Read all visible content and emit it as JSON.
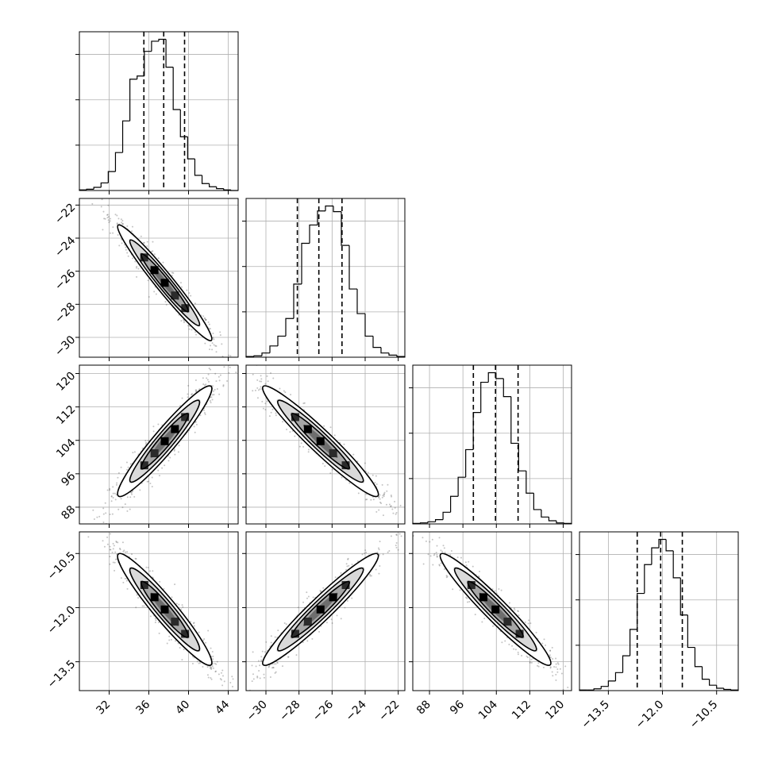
{
  "chart_data": {
    "type": "corner",
    "grid": true,
    "parameters": [
      {
        "range": [
          29,
          45
        ],
        "ticks": [
          32,
          36,
          40,
          44
        ],
        "tick_labels": [
          "32",
          "36",
          "40",
          "44"
        ],
        "tick_rotation": -45,
        "quantiles": [
          35.5,
          37.5,
          39.6
        ],
        "histogram": [
          1,
          2,
          5,
          12,
          30,
          60,
          110,
          176,
          181,
          220,
          236,
          239,
          195,
          128,
          85,
          50,
          24,
          11,
          6,
          3,
          1,
          0
        ]
      },
      {
        "range": [
          -31.2,
          -21.6
        ],
        "ticks": [
          -30,
          -28,
          -26,
          -24,
          -22
        ],
        "tick_labels": [
          "−30",
          "−28",
          "−26",
          "−24",
          "−22"
        ],
        "tick_rotation": -45,
        "quantiles": [
          -28.1,
          -26.8,
          -25.4
        ],
        "histogram": [
          1,
          2,
          6,
          16,
          30,
          55,
          104,
          162,
          188,
          208,
          215,
          207,
          159,
          97,
          62,
          30,
          14,
          6,
          3,
          1
        ]
      },
      {
        "range": [
          84,
          122
        ],
        "ticks": [
          88,
          96,
          104,
          112,
          120
        ],
        "tick_labels": [
          "88",
          "96",
          "104",
          "112",
          "120"
        ],
        "tick_rotation": -45,
        "quantiles": [
          98.5,
          103.8,
          109.2
        ],
        "histogram": [
          1,
          2,
          4,
          8,
          22,
          52,
          88,
          140,
          210,
          267,
          285,
          274,
          240,
          152,
          100,
          58,
          27,
          13,
          6,
          2,
          1
        ]
      },
      {
        "range": [
          -14.3,
          -9.9
        ],
        "ticks": [
          -13.5,
          -12.0,
          -10.5
        ],
        "tick_labels": [
          "−13.5",
          "−12.0",
          "−10.5"
        ],
        "tick_rotation": -45,
        "quantiles": [
          -12.7,
          -12.05,
          -11.45
        ],
        "histogram": [
          1,
          1,
          3,
          7,
          16,
          30,
          58,
          102,
          162,
          210,
          238,
          252,
          233,
          188,
          126,
          72,
          40,
          19,
          9,
          4,
          2,
          1
        ]
      }
    ],
    "pairs": [
      {
        "row": 1,
        "col": 0,
        "mean": [
          37.6,
          -26.7
        ],
        "sd": [
          1.9,
          1.4
        ],
        "corr": -0.97
      },
      {
        "row": 2,
        "col": 0,
        "mean": [
          37.6,
          103.8
        ],
        "sd": [
          1.9,
          5.3
        ],
        "corr": 0.95
      },
      {
        "row": 2,
        "col": 1,
        "mean": [
          -26.7,
          103.8
        ],
        "sd": [
          1.4,
          5.3
        ],
        "corr": -0.96
      },
      {
        "row": 3,
        "col": 0,
        "mean": [
          37.6,
          -12.05
        ],
        "sd": [
          1.9,
          0.62
        ],
        "corr": -0.95
      },
      {
        "row": 3,
        "col": 1,
        "mean": [
          -26.7,
          -12.05
        ],
        "sd": [
          1.4,
          0.62
        ],
        "corr": 0.96
      },
      {
        "row": 3,
        "col": 2,
        "mean": [
          103.8,
          -12.05
        ],
        "sd": [
          5.3,
          0.62
        ],
        "corr": -0.96
      }
    ]
  }
}
